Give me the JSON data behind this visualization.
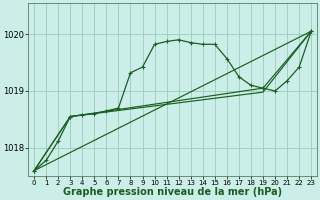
{
  "bg_color": "#cceee8",
  "grid_color": "#99ccbb",
  "line_color": "#1a5e20",
  "xlabel": "Graphe pression niveau de la mer (hPa)",
  "xlabel_fontsize": 7.0,
  "yticks": [
    1018,
    1019,
    1020
  ],
  "xticks": [
    0,
    1,
    2,
    3,
    4,
    5,
    6,
    7,
    8,
    9,
    10,
    11,
    12,
    13,
    14,
    15,
    16,
    17,
    18,
    19,
    20,
    21,
    22,
    23
  ],
  "ylim": [
    1017.5,
    1020.55
  ],
  "xlim": [
    -0.5,
    23.5
  ],
  "series1_x": [
    0,
    1,
    2,
    3,
    4,
    5,
    6,
    7,
    8,
    9,
    10,
    11,
    12,
    13,
    14,
    15,
    16,
    17,
    18,
    19,
    20,
    21,
    22,
    23
  ],
  "series1_y": [
    1017.6,
    1017.78,
    1018.12,
    1018.55,
    1018.58,
    1018.6,
    1018.65,
    1018.7,
    1019.32,
    1019.42,
    1019.82,
    1019.87,
    1019.9,
    1019.85,
    1019.82,
    1019.82,
    1019.57,
    1019.25,
    1019.1,
    1019.05,
    1019.0,
    1019.18,
    1019.42,
    1020.05
  ],
  "series2_x": [
    0,
    3,
    19,
    23
  ],
  "series2_y": [
    1017.6,
    1018.55,
    1019.05,
    1020.05
  ],
  "series3_x": [
    0,
    3,
    19,
    23
  ],
  "series3_y": [
    1017.6,
    1018.55,
    1018.98,
    1020.05
  ],
  "series4_x": [
    0,
    23
  ],
  "series4_y": [
    1017.6,
    1020.05
  ]
}
